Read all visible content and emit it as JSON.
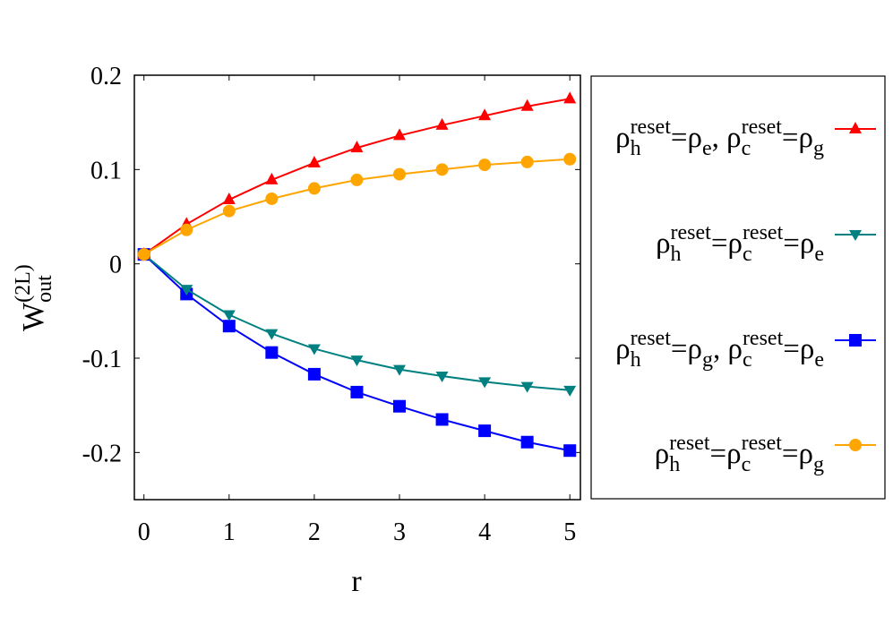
{
  "chart_data": {
    "type": "line",
    "xlabel": "r",
    "ylabel": {
      "base": "W",
      "sub": "out",
      "sup": "(2L)"
    },
    "xlim": [
      -0.12,
      5.18
    ],
    "ylim": [
      -0.25,
      0.2
    ],
    "xticks": [
      "0",
      "1",
      "2",
      "3",
      "4",
      "5"
    ],
    "yticks": [
      "0.2",
      "0.1",
      "0",
      "-0.1",
      "-0.2"
    ],
    "grid": false,
    "legend_position": "outside-right",
    "x": [
      0,
      0.5,
      1,
      1.5,
      2,
      2.5,
      3,
      3.5,
      4,
      4.5,
      5
    ],
    "series": [
      {
        "name": "ρh reset=ρe, ρc reset=ρg",
        "label_parts": [
          {
            "b": "ρ",
            "sub": "h",
            "sup": "reset"
          },
          {
            "t": "=ρ"
          },
          {
            "sub": "e"
          },
          {
            "t": ", ρ"
          },
          {
            "sub": "c",
            "sup": "reset"
          },
          {
            "t": "=ρ"
          },
          {
            "sub": "g"
          }
        ],
        "color": "#ff0000",
        "marker": "triangle-up",
        "values": [
          0.01,
          0.042,
          0.068,
          0.089,
          0.107,
          0.123,
          0.136,
          0.147,
          0.157,
          0.167,
          0.175
        ]
      },
      {
        "name": "ρh reset=ρc reset=ρe",
        "label_parts": [
          {
            "b": "ρ",
            "sub": "h",
            "sup": "reset"
          },
          {
            "t": "=ρ"
          },
          {
            "sub": "c",
            "sup": "reset"
          },
          {
            "t": "=ρ"
          },
          {
            "sub": "e"
          }
        ],
        "color": "#008080",
        "marker": "triangle-down",
        "values": [
          0.01,
          -0.027,
          -0.054,
          -0.074,
          -0.09,
          -0.102,
          -0.112,
          -0.119,
          -0.125,
          -0.13,
          -0.134
        ]
      },
      {
        "name": "ρh reset=ρg, ρc reset=ρe",
        "label_parts": [
          {
            "b": "ρ",
            "sub": "h",
            "sup": "reset"
          },
          {
            "t": "=ρ"
          },
          {
            "sub": "g"
          },
          {
            "t": ", ρ"
          },
          {
            "sub": "c",
            "sup": "reset"
          },
          {
            "t": "=ρ"
          },
          {
            "sub": "e"
          }
        ],
        "color": "#0000ff",
        "marker": "square",
        "values": [
          0.01,
          -0.032,
          -0.066,
          -0.094,
          -0.117,
          -0.136,
          -0.151,
          -0.165,
          -0.177,
          -0.189,
          -0.198
        ]
      },
      {
        "name": "ρh reset=ρc reset=ρg",
        "label_parts": [
          {
            "b": "ρ",
            "sub": "h",
            "sup": "reset"
          },
          {
            "t": "=ρ"
          },
          {
            "sub": "c",
            "sup": "reset"
          },
          {
            "t": "=ρ"
          },
          {
            "sub": "g"
          }
        ],
        "color": "#ffa500",
        "marker": "circle",
        "values": [
          0.01,
          0.036,
          0.056,
          0.069,
          0.08,
          0.089,
          0.095,
          0.1,
          0.105,
          0.108,
          0.111
        ]
      }
    ]
  }
}
